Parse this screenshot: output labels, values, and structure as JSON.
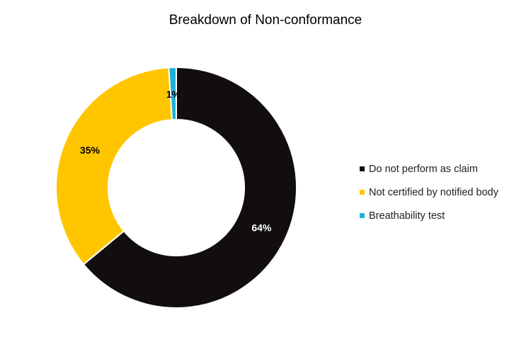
{
  "chart_data": {
    "type": "pie",
    "subtype": "donut",
    "title": "Breakdown of Non-conformance",
    "slices": [
      {
        "label": "Do not perform as claim",
        "value": 64,
        "data_label": "64%",
        "color": "#120e0f"
      },
      {
        "label": "Not certified by notified body",
        "value": 35,
        "data_label": "35%",
        "color": "#ffc600"
      },
      {
        "label": "Breathability test",
        "value": 1,
        "data_label": "1%",
        "color": "#1fb2d6"
      }
    ],
    "start_angle": "12 o'clock",
    "direction": "clockwise",
    "legend_position": "right"
  }
}
